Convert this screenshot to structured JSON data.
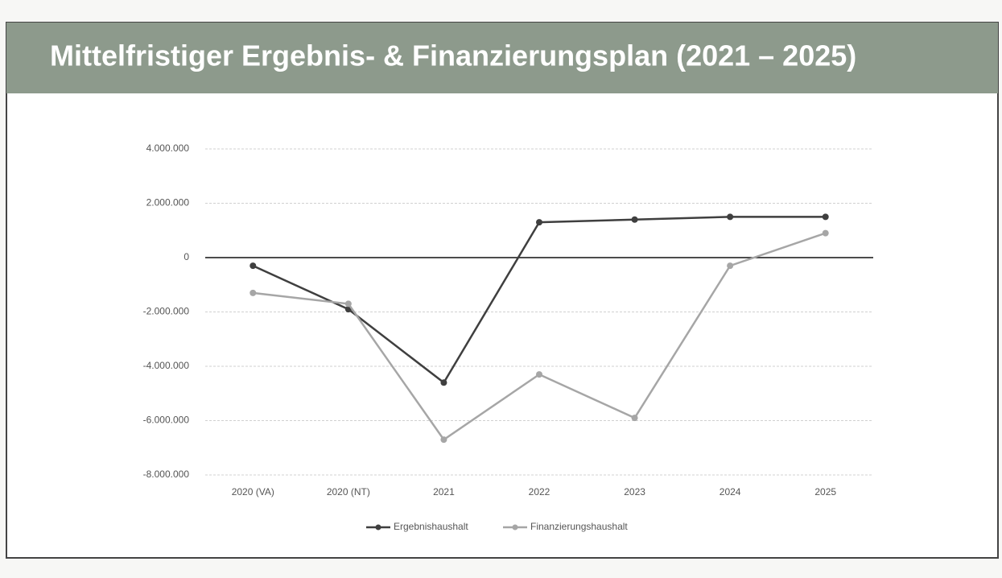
{
  "chart_data": {
    "type": "line",
    "title": "Mittelfristiger Ergebnis- & Finanzierungsplan (2021 – 2025)",
    "categories": [
      "2020 (VA)",
      "2020 (NT)",
      "2021",
      "2022",
      "2023",
      "2024",
      "2025"
    ],
    "series": [
      {
        "name": "Ergebnishaushalt",
        "color": "#3f3f3f",
        "values": [
          -300000,
          -1900000,
          -4600000,
          1300000,
          1400000,
          1500000,
          1500000
        ]
      },
      {
        "name": "Finanzierungshaushalt",
        "color": "#a6a6a6",
        "values": [
          -1300000,
          -1700000,
          -6700000,
          -4300000,
          -5900000,
          -300000,
          900000
        ]
      }
    ],
    "ylim": [
      -8000000,
      4000000
    ],
    "yticks": [
      {
        "value": 4000000,
        "label": "4.000.000"
      },
      {
        "value": 2000000,
        "label": "2.000.000"
      },
      0,
      {
        "value": -2000000,
        "label": "-2.000.000"
      },
      {
        "value": -4000000,
        "label": "-4.000.000"
      },
      {
        "value": -6000000,
        "label": "-6.000.000"
      },
      {
        "value": -8000000,
        "label": "-8.000.000"
      }
    ],
    "grid": true,
    "legend": "bottom"
  }
}
